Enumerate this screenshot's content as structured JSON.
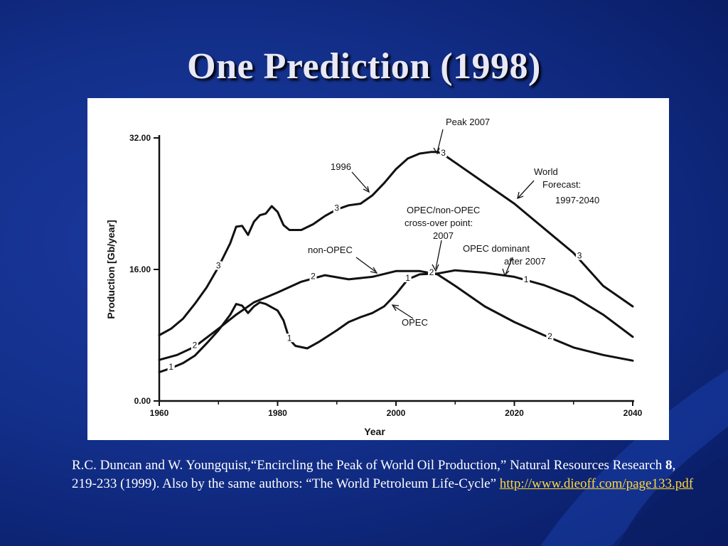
{
  "slide": {
    "title": "One Prediction (1998)",
    "citation": {
      "part1": "R.C. Duncan and W. Youngquist,“Encircling the Peak of World Oil Production,” Natural Resources Research ",
      "volume": "8",
      "part2": ", 219-233 (1999).  Also by the same authors: “The World Petroleum Life-Cycle” ",
      "link": "http://www.dieoff.com/page133.pdf "
    }
  },
  "chart_data": {
    "type": "line",
    "xlabel": "Year",
    "ylabel": "Production   [Gb/year]",
    "xlim": [
      1960,
      2040
    ],
    "ylim": [
      0,
      32
    ],
    "x_ticks": [
      "1960",
      "1980",
      "2000",
      "2020",
      "2040"
    ],
    "y_ticks": [
      "0.00",
      "16.00",
      "32.00"
    ],
    "grid": false,
    "series": [
      {
        "name": "3",
        "values": [
          [
            1960,
            8.0
          ],
          [
            1962,
            8.8
          ],
          [
            1964,
            10.0
          ],
          [
            1966,
            11.8
          ],
          [
            1968,
            13.8
          ],
          [
            1970,
            16.3
          ],
          [
            1972,
            19.2
          ],
          [
            1973,
            21.2
          ],
          [
            1974,
            21.3
          ],
          [
            1975,
            20.2
          ],
          [
            1976,
            21.8
          ],
          [
            1977,
            22.6
          ],
          [
            1978,
            22.8
          ],
          [
            1979,
            23.7
          ],
          [
            1980,
            23.0
          ],
          [
            1981,
            21.4
          ],
          [
            1982,
            20.8
          ],
          [
            1984,
            20.8
          ],
          [
            1986,
            21.5
          ],
          [
            1988,
            22.5
          ],
          [
            1990,
            23.3
          ],
          [
            1992,
            23.8
          ],
          [
            1994,
            24.0
          ],
          [
            1996,
            25.0
          ],
          [
            1998,
            26.5
          ],
          [
            2000,
            28.2
          ],
          [
            2002,
            29.5
          ],
          [
            2004,
            30.1
          ],
          [
            2006,
            30.3
          ],
          [
            2007,
            30.3
          ],
          [
            2008,
            30.0
          ],
          [
            2010,
            29.0
          ],
          [
            2015,
            26.5
          ],
          [
            2020,
            24.0
          ],
          [
            2025,
            21.0
          ],
          [
            2030,
            18.0
          ],
          [
            2035,
            14.0
          ],
          [
            2040,
            11.5
          ]
        ]
      },
      {
        "name": "2",
        "values": [
          [
            1960,
            5.0
          ],
          [
            1963,
            5.6
          ],
          [
            1966,
            6.6
          ],
          [
            1970,
            8.8
          ],
          [
            1973,
            10.5
          ],
          [
            1976,
            12.0
          ],
          [
            1980,
            13.2
          ],
          [
            1984,
            14.5
          ],
          [
            1988,
            15.3
          ],
          [
            1992,
            14.8
          ],
          [
            1996,
            15.1
          ],
          [
            2000,
            15.8
          ],
          [
            2004,
            15.8
          ],
          [
            2007,
            15.4
          ],
          [
            2010,
            14.0
          ],
          [
            2015,
            11.5
          ],
          [
            2020,
            9.6
          ],
          [
            2025,
            8.0
          ],
          [
            2030,
            6.5
          ],
          [
            2035,
            5.6
          ],
          [
            2040,
            4.9
          ]
        ]
      },
      {
        "name": "1",
        "values": [
          [
            1960,
            3.5
          ],
          [
            1962,
            4.0
          ],
          [
            1964,
            4.6
          ],
          [
            1966,
            5.5
          ],
          [
            1968,
            7.0
          ],
          [
            1970,
            8.6
          ],
          [
            1972,
            10.5
          ],
          [
            1973,
            11.8
          ],
          [
            1974,
            11.6
          ],
          [
            1975,
            10.7
          ],
          [
            1976,
            11.5
          ],
          [
            1977,
            12.0
          ],
          [
            1978,
            11.8
          ],
          [
            1980,
            11.0
          ],
          [
            1981,
            9.8
          ],
          [
            1982,
            7.5
          ],
          [
            1983,
            6.7
          ],
          [
            1985,
            6.4
          ],
          [
            1987,
            7.2
          ],
          [
            1990,
            8.6
          ],
          [
            1992,
            9.6
          ],
          [
            1994,
            10.2
          ],
          [
            1996,
            10.7
          ],
          [
            1998,
            11.5
          ],
          [
            2000,
            13.0
          ],
          [
            2002,
            14.8
          ],
          [
            2004,
            15.4
          ],
          [
            2007,
            15.5
          ],
          [
            2010,
            15.9
          ],
          [
            2015,
            15.6
          ],
          [
            2020,
            15.1
          ],
          [
            2025,
            14.1
          ],
          [
            2030,
            12.7
          ],
          [
            2035,
            10.5
          ],
          [
            2040,
            7.8
          ]
        ]
      }
    ],
    "annotations": [
      {
        "text": "Peak 2007"
      },
      {
        "text": "1996"
      },
      {
        "text": "World"
      },
      {
        "text": "Forecast:"
      },
      {
        "text": "1997-2040"
      },
      {
        "text": "OPEC/non-OPEC"
      },
      {
        "text": "cross-over  point:"
      },
      {
        "text": "2007"
      },
      {
        "text": "non-OPEC"
      },
      {
        "text": "OPEC dominant"
      },
      {
        "text": "after  2007"
      },
      {
        "text": "OPEC"
      }
    ],
    "curve_markers": [
      {
        "text": "3",
        "x": 1970,
        "y": 16.3
      },
      {
        "text": "3",
        "x": 1990,
        "y": 23.3
      },
      {
        "text": "3",
        "x": 2008,
        "y": 30.0
      },
      {
        "text": "3",
        "x": 2031,
        "y": 17.5
      },
      {
        "text": "2",
        "x": 1966,
        "y": 6.6
      },
      {
        "text": "2",
        "x": 1986,
        "y": 15.0
      },
      {
        "text": "2",
        "x": 2006,
        "y": 15.5
      },
      {
        "text": "2",
        "x": 2026,
        "y": 7.7
      },
      {
        "text": "1",
        "x": 1962,
        "y": 4.0
      },
      {
        "text": "1",
        "x": 1982,
        "y": 7.5
      },
      {
        "text": "1",
        "x": 2002,
        "y": 14.8
      },
      {
        "text": "1",
        "x": 2022,
        "y": 14.6
      }
    ]
  }
}
